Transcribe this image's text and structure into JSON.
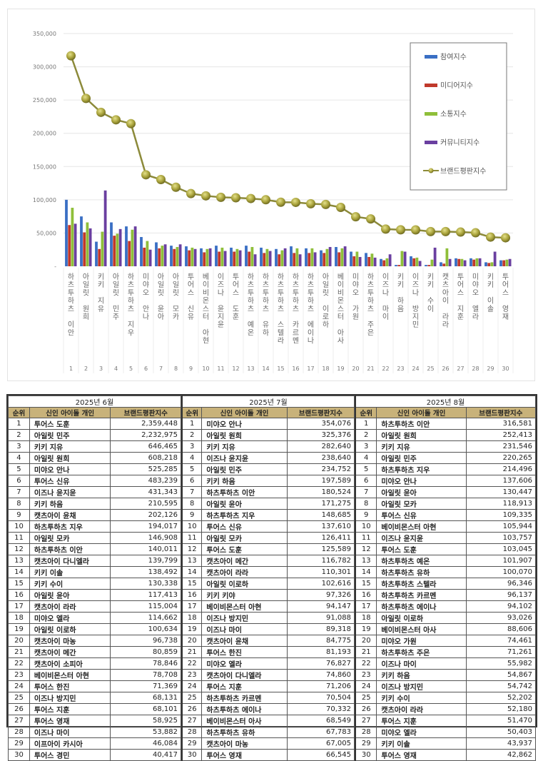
{
  "chart_data": {
    "type": "bar",
    "title": "",
    "xlabel": "",
    "ylabel": "",
    "ylim": [
      0,
      350000
    ],
    "yticks": [
      "-",
      "50,000",
      "100,000",
      "150,000",
      "200,000",
      "250,000",
      "300,000",
      "350,000"
    ],
    "grid": true,
    "legend_position": "upper-right",
    "categories": [
      "하츠투하츠 이안",
      "아일릿 원희",
      "키키 지유",
      "아일릿 민주",
      "하츠투하츠 지우",
      "미야오 안나",
      "아일릿 윤아",
      "아일릿 모카",
      "투어스 신유",
      "베이비몬스터 아현",
      "이즈나 윤지윤",
      "투어스 도훈",
      "하츠투하츠 예온",
      "하츠투하츠 유하",
      "하츠투하츠 스텔라",
      "하츠투하츠 카르멘",
      "하츠투하츠 에이나",
      "아일릿 이로하",
      "베이비몬스터 아사",
      "미야오 가원",
      "하츠투하츠 주은",
      "이즈나 마이",
      "키키 하음",
      "이즈나 방지민",
      "키키 수이",
      "캣츠아이 라라",
      "투어스 지훈",
      "미야오 엘라",
      "키키 이솔",
      "투어스 영재"
    ],
    "category_numbers": [
      "1",
      "2",
      "3",
      "4",
      "5",
      "6",
      "7",
      "8",
      "9",
      "10",
      "11",
      "12",
      "13",
      "14",
      "15",
      "16",
      "17",
      "18",
      "19",
      "20",
      "21",
      "22",
      "23",
      "24",
      "25",
      "26",
      "27",
      "28",
      "29",
      "30"
    ],
    "series": [
      {
        "name": "참여지수",
        "type": "bar",
        "color": "#3a6fc4",
        "values": [
          100000,
          75000,
          37000,
          66000,
          60000,
          44000,
          36000,
          31000,
          30000,
          27000,
          31000,
          28000,
          31000,
          28000,
          26000,
          30000,
          27000,
          24000,
          29000,
          22000,
          20000,
          11000,
          2000,
          15000,
          2000,
          6000,
          12000,
          12000,
          6000,
          9000
        ]
      },
      {
        "name": "미디어지수",
        "type": "bar",
        "color": "#c0392b",
        "values": [
          62000,
          51000,
          26000,
          46000,
          38000,
          28000,
          27000,
          26000,
          24000,
          21000,
          22000,
          22000,
          22000,
          20000,
          18000,
          20000,
          20000,
          20000,
          21000,
          15000,
          14000,
          9000,
          2000,
          12000,
          2000,
          4000,
          11000,
          10000,
          5000,
          9000
        ]
      },
      {
        "name": "소통지수",
        "type": "bar",
        "color": "#8fbf3a",
        "values": [
          88000,
          66000,
          52000,
          49000,
          55000,
          38000,
          31000,
          29000,
          28000,
          26000,
          28000,
          26000,
          29000,
          26000,
          24000,
          27000,
          27000,
          26000,
          27000,
          22000,
          19000,
          12000,
          23000,
          13000,
          10000,
          27000,
          11000,
          12000,
          6000,
          10000
        ]
      },
      {
        "name": "커뮤니티지수",
        "type": "bar",
        "color": "#6a3fa0",
        "values": [
          64000,
          57000,
          114000,
          56000,
          60000,
          25000,
          33000,
          33000,
          26000,
          27000,
          23000,
          24000,
          18000,
          23000,
          27000,
          18000,
          21000,
          29000,
          30000,
          14000,
          13000,
          18000,
          22000,
          8000,
          28000,
          11000,
          9000,
          12000,
          22000,
          11000
        ]
      },
      {
        "name": "브랜드평판지수",
        "type": "line",
        "color": "#9a9a3c",
        "values": [
          316581,
          252413,
          231546,
          220265,
          214496,
          137606,
          130447,
          118913,
          109335,
          105944,
          103757,
          103045,
          101907,
          100070,
          96346,
          96137,
          94102,
          93026,
          88606,
          74461,
          71261,
          55982,
          54867,
          54742,
          52202,
          52180,
          51470,
          50403,
          43937,
          42862
        ]
      }
    ]
  },
  "tables": [
    {
      "month": "2025년 6월",
      "headers": [
        "순위",
        "신인 아이돌 개인",
        "브랜드평판지수"
      ],
      "rows": [
        [
          "1",
          "투어스 도훈",
          "2,359,448"
        ],
        [
          "2",
          "아일릿 민주",
          "2,232,975"
        ],
        [
          "3",
          "키키 지유",
          "646,465"
        ],
        [
          "4",
          "아일릿 원희",
          "608,218"
        ],
        [
          "5",
          "미야오 안나",
          "525,285"
        ],
        [
          "6",
          "투어스 신유",
          "483,239"
        ],
        [
          "7",
          "이즈나 윤지윤",
          "431,343"
        ],
        [
          "8",
          "키키 하음",
          "210,595"
        ],
        [
          "9",
          "캣츠아이 윤채",
          "202,126"
        ],
        [
          "10",
          "하츠투하츠 지우",
          "194,017"
        ],
        [
          "11",
          "아일릿 모카",
          "146,908"
        ],
        [
          "12",
          "하츠투하츠 이안",
          "140,011"
        ],
        [
          "13",
          "캣츠아이 다니엘라",
          "139,799"
        ],
        [
          "14",
          "키키 이솔",
          "138,492"
        ],
        [
          "15",
          "키키 수이",
          "130,338"
        ],
        [
          "16",
          "아일릿 윤아",
          "117,413"
        ],
        [
          "17",
          "캣츠아이 라라",
          "115,004"
        ],
        [
          "18",
          "미야오 엘라",
          "114,662"
        ],
        [
          "19",
          "아일릿 이로하",
          "100,634"
        ],
        [
          "20",
          "캣츠아이 마농",
          "96,738"
        ],
        [
          "21",
          "캣츠아이 메간",
          "80,859"
        ],
        [
          "22",
          "캣츠아이 소피아",
          "78,846"
        ],
        [
          "23",
          "베이비몬스터 아현",
          "78,708"
        ],
        [
          "24",
          "투어스 한진",
          "71,369"
        ],
        [
          "25",
          "이즈나 방지민",
          "68,131"
        ],
        [
          "26",
          "투어스 지훈",
          "68,101"
        ],
        [
          "27",
          "투어스 영재",
          "58,925"
        ],
        [
          "28",
          "이즈나 마이",
          "53,882"
        ],
        [
          "29",
          "이프아이 카시아",
          "46,084"
        ],
        [
          "30",
          "투어스 경민",
          "40,417"
        ]
      ]
    },
    {
      "month": "2025년 7월",
      "headers": [
        "순위",
        "신인 아이돌 개인",
        "브랜드평판지수"
      ],
      "rows": [
        [
          "1",
          "미야오 안나",
          "354,076"
        ],
        [
          "2",
          "아일릿 원희",
          "325,376"
        ],
        [
          "3",
          "키키 지유",
          "282,640"
        ],
        [
          "4",
          "이즈나 윤지윤",
          "238,640"
        ],
        [
          "5",
          "아일릿 민주",
          "234,752"
        ],
        [
          "6",
          "키키 하음",
          "197,589"
        ],
        [
          "7",
          "하츠투하츠 이안",
          "180,524"
        ],
        [
          "8",
          "아일릿 윤아",
          "171,275"
        ],
        [
          "9",
          "하츠투하츠 지우",
          "148,685"
        ],
        [
          "10",
          "투어스 신유",
          "137,610"
        ],
        [
          "11",
          "아일릿 모카",
          "126,411"
        ],
        [
          "12",
          "투어스 도훈",
          "125,589"
        ],
        [
          "13",
          "캣츠아이 메간",
          "116,782"
        ],
        [
          "14",
          "캣츠아이 라라",
          "110,301"
        ],
        [
          "15",
          "아일릿 이로하",
          "102,616"
        ],
        [
          "16",
          "키키 키야",
          "97,326"
        ],
        [
          "17",
          "베이비몬스터 아현",
          "94,147"
        ],
        [
          "18",
          "이즈나 방지민",
          "91,088"
        ],
        [
          "19",
          "이즈나 마이",
          "89,318"
        ],
        [
          "20",
          "캣츠아이 윤채",
          "84,775"
        ],
        [
          "21",
          "투어스 한진",
          "81,193"
        ],
        [
          "22",
          "미야오 엘라",
          "76,827"
        ],
        [
          "23",
          "캣츠아이 다니엘라",
          "74,860"
        ],
        [
          "24",
          "투어스 지훈",
          "71,206"
        ],
        [
          "25",
          "하츠투하츠 카르멘",
          "70,504"
        ],
        [
          "26",
          "하츠투하츠 에이나",
          "70,332"
        ],
        [
          "27",
          "베이비몬스터 아사",
          "68,549"
        ],
        [
          "28",
          "하츠투하츠 유하",
          "67,783"
        ],
        [
          "29",
          "캣츠아이 마농",
          "67,005"
        ],
        [
          "30",
          "투어스 영재",
          "66,545"
        ]
      ]
    },
    {
      "month": "2025년 8월",
      "headers": [
        "순위",
        "신인 아이돌 개인",
        "브랜드평판지수"
      ],
      "rows": [
        [
          "1",
          "하츠투하츠 이안",
          "316,581"
        ],
        [
          "2",
          "아일릿 원희",
          "252,413"
        ],
        [
          "3",
          "키키 지유",
          "231,546"
        ],
        [
          "4",
          "아일릿 민주",
          "220,265"
        ],
        [
          "5",
          "하츠투하츠 지우",
          "214,496"
        ],
        [
          "6",
          "미야오 안나",
          "137,606"
        ],
        [
          "7",
          "아일릿 윤아",
          "130,447"
        ],
        [
          "8",
          "아일릿 모카",
          "118,913"
        ],
        [
          "9",
          "투어스 신유",
          "109,335"
        ],
        [
          "10",
          "베이비몬스터 아현",
          "105,944"
        ],
        [
          "11",
          "이즈나 윤지윤",
          "103,757"
        ],
        [
          "12",
          "투어스 도훈",
          "103,045"
        ],
        [
          "13",
          "하츠투하츠 예온",
          "101,907"
        ],
        [
          "14",
          "하츠투하츠 유하",
          "100,070"
        ],
        [
          "15",
          "하츠투하츠 스텔라",
          "96,346"
        ],
        [
          "16",
          "하츠투하츠 카르멘",
          "96,137"
        ],
        [
          "17",
          "하츠투하츠 에이나",
          "94,102"
        ],
        [
          "18",
          "아일릿 이로하",
          "93,026"
        ],
        [
          "19",
          "베이비몬스터 아사",
          "88,606"
        ],
        [
          "20",
          "미야오 가원",
          "74,461"
        ],
        [
          "21",
          "하츠투하츠 주은",
          "71,261"
        ],
        [
          "22",
          "이즈나 마이",
          "55,982"
        ],
        [
          "23",
          "키키 하음",
          "54,867"
        ],
        [
          "24",
          "이즈나 방지민",
          "54,742"
        ],
        [
          "25",
          "키키 수이",
          "52,202"
        ],
        [
          "26",
          "캣츠아이 라라",
          "52,180"
        ],
        [
          "27",
          "투어스 지훈",
          "51,470"
        ],
        [
          "28",
          "미야오 엘라",
          "50,403"
        ],
        [
          "29",
          "키키 이솔",
          "43,937"
        ],
        [
          "30",
          "투어스 영재",
          "42,862"
        ]
      ]
    }
  ]
}
